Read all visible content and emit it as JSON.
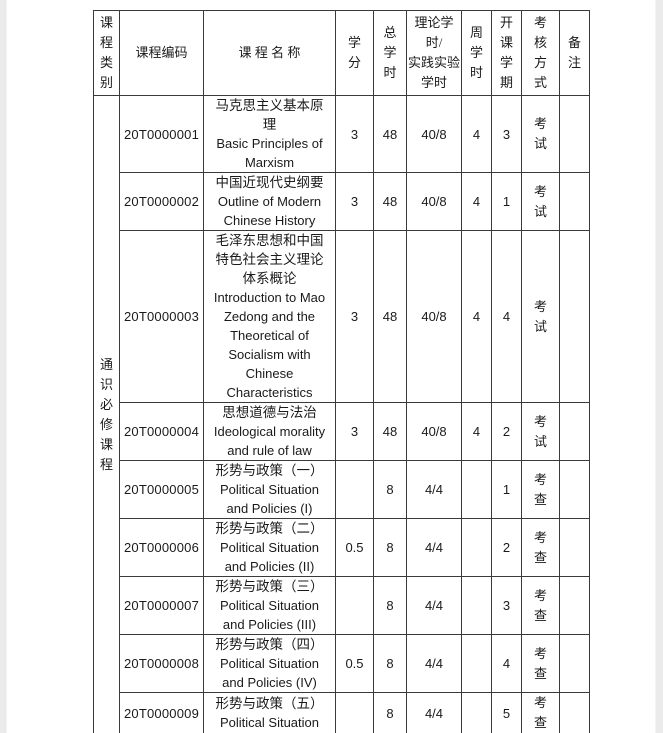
{
  "page": {
    "background": "#ffffff",
    "edge_strip_color": "#ebebeb",
    "border_color": "#3a3a3a"
  },
  "table": {
    "headers": {
      "category": "课程类别",
      "code": "课程编码",
      "name": "课 程 名 称",
      "credits": "学分",
      "total_hours": "总学时",
      "theory_practice_hours": "理论学时/\n实践实验\n学时",
      "weekly_hours": "周学时",
      "semester": "开课学期",
      "assessment": "考核方式",
      "remarks": "备注"
    },
    "category_label": "通识必修课程",
    "rows": [
      {
        "code": "20T0000001",
        "name_zh": "马克思主义基本原\n理",
        "name_en": "Basic Principles of\nMarxism",
        "credits": "3",
        "total_hours": "48",
        "theory_practice": "40/8",
        "weekly": "4",
        "semester": "3",
        "assessment": "考试",
        "remarks": ""
      },
      {
        "code": "20T0000002",
        "name_zh": "中国近现代史纲要",
        "name_en": "Outline of Modern\nChinese History",
        "credits": "3",
        "total_hours": "48",
        "theory_practice": "40/8",
        "weekly": "4",
        "semester": "1",
        "assessment": "考试",
        "remarks": ""
      },
      {
        "code": "20T0000003",
        "name_zh": "毛泽东思想和中国\n特色社会主义理论\n体系概论",
        "name_en": "Introduction to Mao\nZedong and the\nTheoretical of\nSocialism with\nChinese\nCharacteristics",
        "credits": "3",
        "total_hours": "48",
        "theory_practice": "40/8",
        "weekly": "4",
        "semester": "4",
        "assessment": "考试",
        "remarks": ""
      },
      {
        "code": "20T0000004",
        "name_zh": "思想道德与法治",
        "name_en": "Ideological morality\nand rule of law",
        "credits": "3",
        "total_hours": "48",
        "theory_practice": "40/8",
        "weekly": "4",
        "semester": "2",
        "assessment": "考试",
        "remarks": ""
      },
      {
        "code": "20T0000005",
        "name_zh": "形势与政策（一）",
        "name_en": "Political Situation\nand Policies (I)",
        "credits": "",
        "total_hours": "8",
        "theory_practice": "4/4",
        "weekly": "",
        "semester": "1",
        "assessment": "考查",
        "remarks": ""
      },
      {
        "code": "20T0000006",
        "name_zh": "形势与政策（二）",
        "name_en": "Political Situation\nand Policies (II)",
        "credits": "0.5",
        "total_hours": "8",
        "theory_practice": "4/4",
        "weekly": "",
        "semester": "2",
        "assessment": "考查",
        "remarks": ""
      },
      {
        "code": "20T0000007",
        "name_zh": "形势与政策（三）",
        "name_en": "Political Situation\nand Policies (III)",
        "credits": "",
        "total_hours": "8",
        "theory_practice": "4/4",
        "weekly": "",
        "semester": "3",
        "assessment": "考查",
        "remarks": ""
      },
      {
        "code": "20T0000008",
        "name_zh": "形势与政策（四）",
        "name_en": "Political Situation\nand Policies (IV)",
        "credits": "0.5",
        "total_hours": "8",
        "theory_practice": "4/4",
        "weekly": "",
        "semester": "4",
        "assessment": "考查",
        "remarks": ""
      },
      {
        "code": "20T0000009",
        "name_zh": "形势与政策（五）",
        "name_en": "Political Situation",
        "credits": "",
        "total_hours": "8",
        "theory_practice": "4/4",
        "weekly": "",
        "semester": "5",
        "assessment": "考查",
        "remarks": ""
      }
    ]
  }
}
